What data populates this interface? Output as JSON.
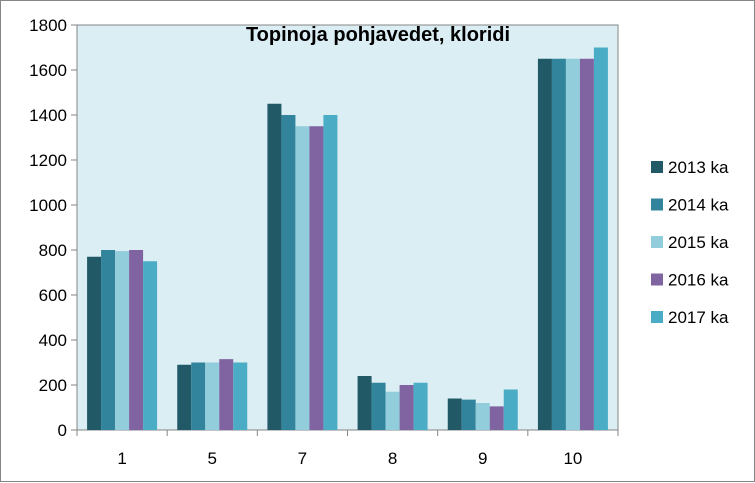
{
  "chart_data": {
    "type": "bar",
    "title": "Topinoja pohjavedet, kloridi",
    "xlabel": "",
    "ylabel": "",
    "categories": [
      "1",
      "5",
      "7",
      "8",
      "9",
      "10"
    ],
    "ylim": [
      0,
      1800
    ],
    "yticks": [
      "0",
      "200",
      "400",
      "600",
      "800",
      "1000",
      "1200",
      "1400",
      "1600",
      "1800"
    ],
    "grid": false,
    "legend_position": "right",
    "plot_background": "#daeef3",
    "series": [
      {
        "name": "2013 ka",
        "color": "#215967",
        "values": [
          770,
          290,
          1450,
          240,
          140,
          1650
        ]
      },
      {
        "name": "2014 ka",
        "color": "#31849b",
        "values": [
          800,
          300,
          1400,
          210,
          135,
          1650
        ]
      },
      {
        "name": "2015 ka",
        "color": "#92cddc",
        "values": [
          795,
          300,
          1350,
          170,
          120,
          1650
        ]
      },
      {
        "name": "2016 ka",
        "color": "#8064a2",
        "values": [
          800,
          315,
          1350,
          200,
          105,
          1650
        ]
      },
      {
        "name": "2017 ka",
        "color": "#4bacc6",
        "values": [
          750,
          300,
          1400,
          210,
          180,
          1700
        ]
      }
    ]
  }
}
